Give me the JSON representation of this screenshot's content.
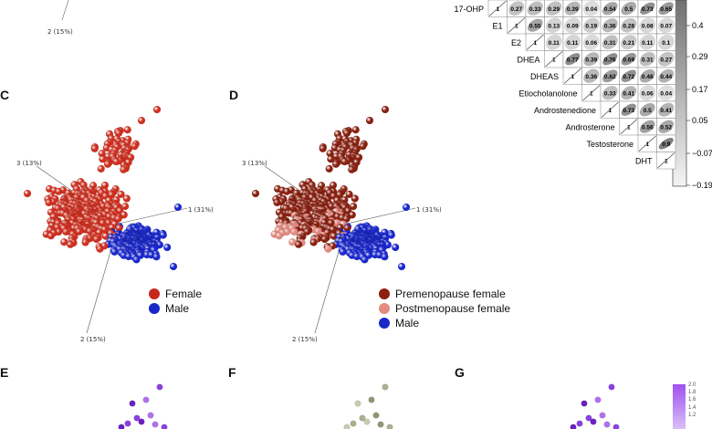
{
  "panels": {
    "top_left_axis": "2 (15%)",
    "C": {
      "letter": "C",
      "axis1": "1 (31%)",
      "axis2": "2 (15%)",
      "axis3": "3 (13%)",
      "legend": [
        {
          "label": "Female",
          "color": "#c8281a"
        },
        {
          "label": "Male",
          "color": "#1a28c8"
        }
      ]
    },
    "D": {
      "letter": "D",
      "axis1": "1 (31%)",
      "axis2": "2 (15%)",
      "axis3": "3 (13%)",
      "legend": [
        {
          "label": "Premenopause female",
          "color": "#8b2010"
        },
        {
          "label": "Postmenopause female",
          "color": "#e58a80"
        },
        {
          "label": "Male",
          "color": "#1a28c8"
        }
      ]
    },
    "E": {
      "letter": "E"
    },
    "F": {
      "letter": "F"
    },
    "G": {
      "letter": "G",
      "scale_ticks": [
        "2.0",
        "1.8",
        "1.6",
        "1.4",
        "1.2"
      ]
    }
  },
  "correlation": {
    "labels": [
      "17-OHP",
      "E1",
      "E2",
      "DHEA",
      "DHEAS",
      "Etiocholanolone",
      "Androstenedione",
      "Androsterone",
      "Testosterone",
      "DHT"
    ],
    "rows": [
      [
        "1",
        "0.27",
        "0.33",
        "0.29",
        "0.39",
        "0.04",
        "0.54",
        "0.5",
        "0.73",
        "0.65"
      ],
      [
        "1",
        "0.55",
        "0.13",
        "0.09",
        "0.19",
        "0.36",
        "0.28",
        "0.08",
        "0.07"
      ],
      [
        "1",
        "0.11",
        "0.11",
        "0.06",
        "0.31",
        "0.21",
        "0.11",
        "0.1"
      ],
      [
        "1",
        "0.77",
        "0.39",
        "0.76",
        "0.69",
        "0.31",
        "0.27"
      ],
      [
        "1",
        "0.36",
        "0.62",
        "0.72",
        "0.48",
        "0.44"
      ],
      [
        "1",
        "0.33",
        "0.41",
        "0.06",
        "0.04"
      ],
      [
        "1",
        "0.73",
        "0.5",
        "0.41"
      ],
      [
        "1",
        "0.56",
        "0.52"
      ],
      [
        "1",
        "0.9"
      ],
      [
        "1"
      ]
    ],
    "colorbar_ticks": [
      "0.4",
      "0.29",
      "0.17",
      "0.05",
      "−0.07",
      "−0.19"
    ]
  }
}
